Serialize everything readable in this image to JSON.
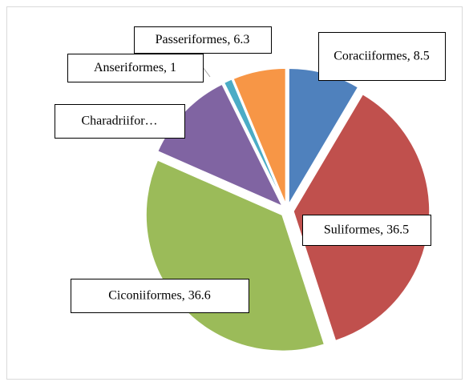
{
  "chart_data": {
    "type": "pie",
    "values": [
      8.5,
      36.5,
      36.6,
      11.1,
      1,
      6.3
    ],
    "value_labels": [
      "Coraciiformes, 8.5",
      "Suliformes, 36.5",
      "Ciconiiformes, 36.6",
      "Charadriifor…",
      "Anseriformes, 1",
      "Passeriformes, 6.3"
    ],
    "colors": [
      "#4f81bd",
      "#c0504d",
      "#9bbb59",
      "#8064a2",
      "#4bacc6",
      "#f79646"
    ]
  }
}
